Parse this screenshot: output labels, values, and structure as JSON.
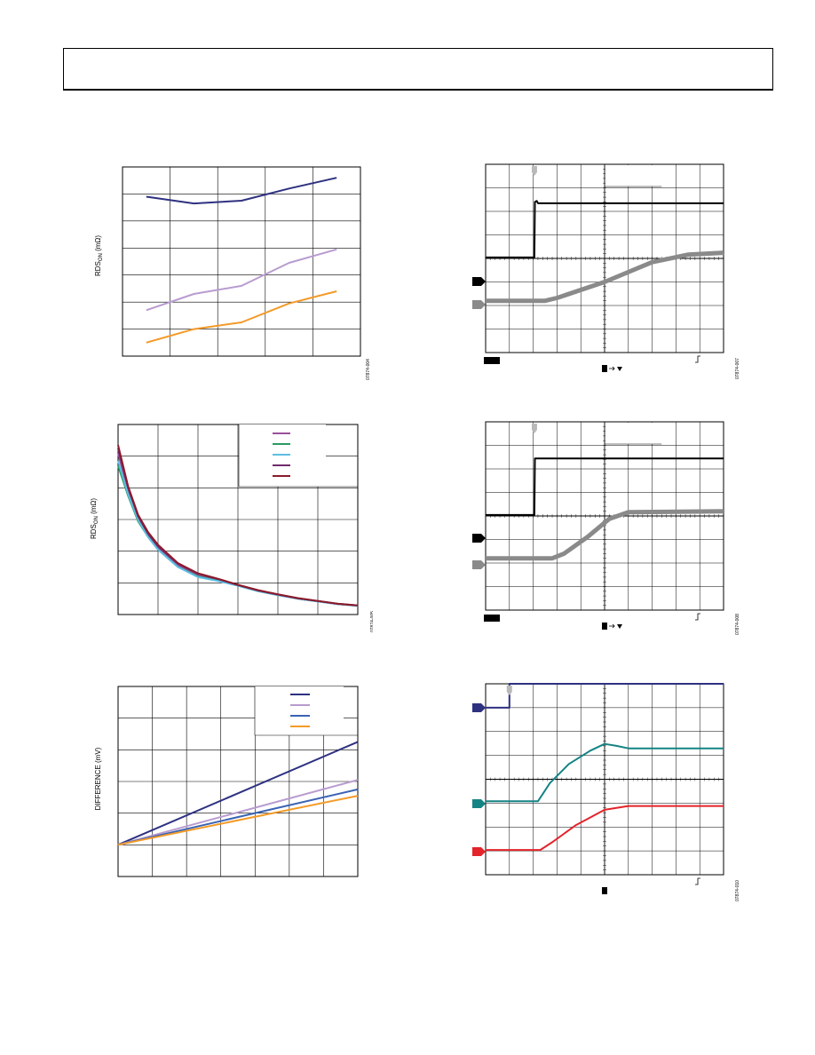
{
  "page": {
    "header": ""
  },
  "colors": {
    "navy": "#2e3180",
    "lavender": "#b89ccf",
    "orange": "#f49a27",
    "magenta": "#9b4f9b",
    "green": "#2a9a62",
    "cyan": "#5bbfe4",
    "purple": "#702a6e",
    "maroon": "#8b1a2a",
    "blue": "#3a63b3",
    "teal": "#148383",
    "red": "#e3242b",
    "gray": "#8a8a8a",
    "black": "#000000"
  },
  "icons": [
    "trigger-marker-icon",
    "channel-marker-icon",
    "trigger-edge-icon",
    "arrow-icon"
  ],
  "chart_data": [
    {
      "type": "line",
      "ylabel": "RDS",
      "ylabel_sub": "ON",
      "ylabel_unit": " (mΩ)",
      "grid": true,
      "xlim": [
        0,
        5
      ],
      "ylim": [
        0,
        7
      ],
      "x": [
        0.5,
        1.5,
        2.5,
        3.5,
        4.5
      ],
      "series": [
        {
          "color": "navy",
          "values": [
            5.9,
            5.65,
            5.75,
            6.2,
            6.6
          ]
        },
        {
          "color": "lavender",
          "values": [
            1.7,
            2.3,
            2.6,
            3.45,
            3.95
          ]
        },
        {
          "color": "orange",
          "values": [
            0.5,
            1.0,
            1.25,
            1.95,
            2.4
          ]
        }
      ],
      "figure_id": "07874-004"
    },
    {
      "type": "line",
      "ylabel": "RDS",
      "ylabel_sub": "ON",
      "ylabel_unit": " (mΩ)",
      "grid": true,
      "xlim": [
        0,
        6
      ],
      "ylim": [
        0,
        6
      ],
      "legend_position": "top-right",
      "x": [
        0,
        0.25,
        0.5,
        0.75,
        1,
        1.5,
        2,
        2.5,
        3,
        3.5,
        4,
        4.5,
        5,
        5.5,
        6
      ],
      "series": [
        {
          "color": "magenta",
          "values": [
            5.1,
            3.9,
            3.05,
            2.5,
            2.1,
            1.55,
            1.22,
            1.08,
            0.92,
            0.75,
            0.62,
            0.5,
            0.42,
            0.33,
            0.28
          ]
        },
        {
          "color": "green",
          "values": [
            4.7,
            3.75,
            2.95,
            2.45,
            2.05,
            1.5,
            1.2,
            1.07,
            0.91,
            0.74,
            0.61,
            0.5,
            0.42,
            0.33,
            0.28
          ]
        },
        {
          "color": "cyan",
          "values": [
            4.85,
            3.8,
            3.0,
            2.45,
            2.05,
            1.5,
            1.18,
            1.06,
            0.91,
            0.74,
            0.61,
            0.5,
            0.41,
            0.33,
            0.27
          ]
        },
        {
          "color": "purple",
          "values": [
            5.25,
            4.0,
            3.1,
            2.55,
            2.15,
            1.6,
            1.28,
            1.12,
            0.93,
            0.76,
            0.63,
            0.51,
            0.43,
            0.34,
            0.29
          ]
        },
        {
          "color": "maroon",
          "values": [
            5.35,
            4.05,
            3.15,
            2.6,
            2.2,
            1.62,
            1.3,
            1.13,
            0.94,
            0.77,
            0.64,
            0.52,
            0.43,
            0.34,
            0.29
          ]
        }
      ],
      "figure_id": "07874-005"
    },
    {
      "type": "line",
      "ylabel": "DIFFERENCE (mV)",
      "grid": true,
      "xlim": [
        0,
        7
      ],
      "ylim": [
        0,
        6
      ],
      "legend_position": "top-right",
      "x": [
        0,
        7
      ],
      "series": [
        {
          "color": "navy",
          "values": [
            1.0,
            4.25
          ]
        },
        {
          "color": "lavender",
          "values": [
            1.0,
            3.05
          ]
        },
        {
          "color": "blue",
          "values": [
            1.0,
            2.75
          ]
        },
        {
          "color": "orange",
          "values": [
            1.0,
            2.55
          ]
        }
      ],
      "figure_id": "07874-006"
    }
  ],
  "scopes": [
    {
      "figure_id": "07874-007",
      "channels": [
        {
          "color": "black",
          "marker": "channel-marker-icon",
          "points": [
            [
              0,
              0.495
            ],
            [
              0.205,
              0.495
            ],
            [
              0.207,
              0.2
            ],
            [
              0.215,
              0.195
            ],
            [
              0.22,
              0.207
            ],
            [
              1,
              0.207
            ]
          ]
        },
        {
          "color": "gray",
          "marker": "channel-marker-icon",
          "points": [
            [
              0,
              0.725
            ],
            [
              0.25,
              0.725
            ],
            [
              0.3,
              0.71
            ],
            [
              0.5,
              0.625
            ],
            [
              0.7,
              0.52
            ],
            [
              0.85,
              0.48
            ],
            [
              1,
              0.47
            ]
          ]
        }
      ]
    },
    {
      "figure_id": "07874-008",
      "channels": [
        {
          "color": "black",
          "marker": "channel-marker-icon",
          "points": [
            [
              0,
              0.495
            ],
            [
              0.205,
              0.495
            ],
            [
              0.207,
              0.195
            ],
            [
              1,
              0.195
            ]
          ]
        },
        {
          "color": "gray",
          "marker": "channel-marker-icon",
          "points": [
            [
              0,
              0.725
            ],
            [
              0.28,
              0.725
            ],
            [
              0.33,
              0.7
            ],
            [
              0.43,
              0.61
            ],
            [
              0.52,
              0.515
            ],
            [
              0.6,
              0.48
            ],
            [
              1,
              0.475
            ]
          ]
        }
      ]
    },
    {
      "figure_id": "07874-010",
      "channels": [
        {
          "color": "navy",
          "marker": "channel-marker-icon",
          "points": [
            [
              0,
              0.125
            ],
            [
              0.1,
              0.125
            ],
            [
              0.1,
              0.0
            ],
            [
              1,
              0.0
            ]
          ]
        },
        {
          "color": "teal",
          "marker": "channel-marker-icon",
          "points": [
            [
              0,
              0.615
            ],
            [
              0.22,
              0.615
            ],
            [
              0.27,
              0.52
            ],
            [
              0.35,
              0.42
            ],
            [
              0.44,
              0.35
            ],
            [
              0.5,
              0.315
            ],
            [
              0.55,
              0.325
            ],
            [
              0.6,
              0.338
            ],
            [
              1,
              0.338
            ]
          ]
        },
        {
          "color": "red",
          "marker": "channel-marker-icon",
          "points": [
            [
              0,
              0.87
            ],
            [
              0.23,
              0.87
            ],
            [
              0.28,
              0.83
            ],
            [
              0.38,
              0.74
            ],
            [
              0.5,
              0.66
            ],
            [
              0.6,
              0.64
            ],
            [
              1,
              0.64
            ]
          ]
        }
      ]
    }
  ]
}
